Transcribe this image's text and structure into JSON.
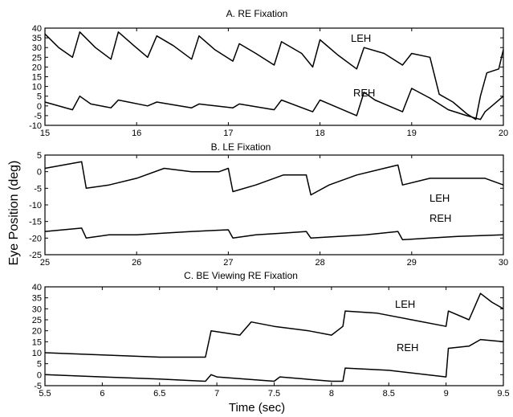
{
  "figure": {
    "ylabel": "Eye Position (deg)",
    "xlabel": "Time (sec)"
  },
  "chart_data": [
    {
      "type": "line",
      "title": "A.  RE Fixation",
      "xlim": [
        15,
        20
      ],
      "ylim": [
        -10,
        40
      ],
      "xticks": [
        "15",
        "16",
        "17",
        "18",
        "19",
        "20"
      ],
      "yticks": [
        "-10",
        "-5",
        "0",
        "5",
        "10",
        "15",
        "20",
        "25",
        "30",
        "35",
        "40"
      ],
      "grid": false,
      "series": [
        {
          "name": "LEH",
          "x": [
            15.0,
            15.15,
            15.3,
            15.38,
            15.55,
            15.72,
            15.8,
            15.97,
            16.12,
            16.22,
            16.4,
            16.6,
            16.68,
            16.85,
            17.05,
            17.12,
            17.3,
            17.5,
            17.58,
            17.8,
            17.92,
            18.0,
            18.2,
            18.4,
            18.48,
            18.7,
            18.9,
            19.0,
            19.2,
            19.3,
            19.45,
            19.6,
            19.7,
            19.75,
            19.82,
            19.95,
            20.0
          ],
          "values": [
            37,
            30,
            25,
            38,
            30,
            24,
            38,
            31,
            25,
            36,
            31,
            24,
            36,
            29,
            23,
            32,
            27,
            21,
            33,
            27,
            20,
            34,
            26,
            19,
            30,
            27,
            21,
            27,
            25,
            6,
            2,
            -4,
            -7,
            5,
            17,
            19,
            29
          ]
        },
        {
          "name": "REH",
          "x": [
            15.0,
            15.3,
            15.38,
            15.5,
            15.72,
            15.8,
            16.12,
            16.22,
            16.6,
            16.68,
            17.05,
            17.12,
            17.5,
            17.58,
            17.92,
            18.0,
            18.4,
            18.48,
            18.6,
            18.9,
            19.0,
            19.2,
            19.4,
            19.6,
            19.75,
            19.8,
            19.9,
            20.0
          ],
          "values": [
            2,
            -2,
            5,
            1,
            -1,
            3,
            0,
            2,
            -1,
            1,
            -1,
            1,
            -2,
            3,
            -3,
            3,
            -5,
            7,
            3,
            -3,
            9,
            4,
            -2,
            -5,
            -7,
            -3,
            1,
            5
          ]
        }
      ],
      "annotations": [
        "LEH",
        "REH"
      ]
    },
    {
      "type": "line",
      "title": "B.  LE Fixation",
      "xlim": [
        25,
        30
      ],
      "ylim": [
        -25,
        5
      ],
      "xticks": [
        "25",
        "26",
        "27",
        "28",
        "29",
        "30"
      ],
      "yticks": [
        "-25",
        "-20",
        "-15",
        "-10",
        "-5",
        "0",
        "5"
      ],
      "grid": false,
      "series": [
        {
          "name": "LEH",
          "x": [
            25.0,
            25.2,
            25.4,
            25.45,
            25.7,
            26.0,
            26.3,
            26.6,
            26.9,
            27.0,
            27.05,
            27.3,
            27.6,
            27.85,
            27.9,
            28.1,
            28.4,
            28.7,
            28.85,
            28.9,
            29.2,
            29.5,
            29.8,
            30.0
          ],
          "values": [
            1,
            2,
            3,
            -5,
            -4,
            -2,
            1,
            0,
            0,
            1,
            -6,
            -4,
            -1,
            -1,
            -7,
            -4,
            -1,
            1,
            2,
            -4,
            -2,
            -2,
            -2,
            -4
          ]
        },
        {
          "name": "REH",
          "x": [
            25.0,
            25.4,
            25.45,
            25.7,
            26.0,
            26.3,
            26.6,
            27.0,
            27.05,
            27.3,
            27.6,
            27.85,
            27.9,
            28.2,
            28.5,
            28.85,
            28.9,
            29.2,
            29.5,
            30.0
          ],
          "values": [
            -18,
            -17,
            -20,
            -19,
            -19,
            -18.5,
            -18,
            -17.5,
            -20,
            -19,
            -18.5,
            -18,
            -20,
            -19.5,
            -19,
            -18,
            -20.5,
            -20,
            -19.5,
            -19
          ]
        }
      ],
      "annotations": [
        "LEH",
        "REH"
      ]
    },
    {
      "type": "line",
      "title": "C.  BE Viewing  RE Fixation",
      "xlim": [
        5.5,
        9.5
      ],
      "ylim": [
        -5,
        40
      ],
      "xticks": [
        "5.5",
        "6",
        "6.5",
        "7",
        "7.5",
        "8",
        "8.5",
        "9",
        "9.5"
      ],
      "yticks": [
        "-5",
        "0",
        "5",
        "10",
        "15",
        "20",
        "25",
        "30",
        "35",
        "40"
      ],
      "grid": false,
      "series": [
        {
          "name": "LEH",
          "x": [
            5.5,
            6.0,
            6.5,
            6.9,
            6.95,
            7.2,
            7.3,
            7.5,
            7.8,
            8.0,
            8.1,
            8.12,
            8.4,
            8.7,
            9.0,
            9.02,
            9.2,
            9.3,
            9.4,
            9.5
          ],
          "values": [
            10,
            9,
            8,
            8,
            20,
            18,
            24,
            22,
            20,
            18,
            22,
            29,
            28,
            25,
            22,
            29,
            25,
            37,
            33,
            30
          ]
        },
        {
          "name": "REH",
          "x": [
            5.5,
            6.0,
            6.5,
            6.9,
            6.95,
            7.0,
            7.5,
            7.55,
            8.0,
            8.1,
            8.12,
            8.5,
            9.0,
            9.02,
            9.2,
            9.3,
            9.5
          ],
          "values": [
            0,
            -1,
            -2,
            -3,
            0,
            -1,
            -3,
            -1,
            -3,
            -3,
            3,
            2,
            -1,
            12,
            13,
            16,
            15
          ]
        }
      ],
      "annotations": [
        "LEH",
        "REH"
      ]
    }
  ]
}
